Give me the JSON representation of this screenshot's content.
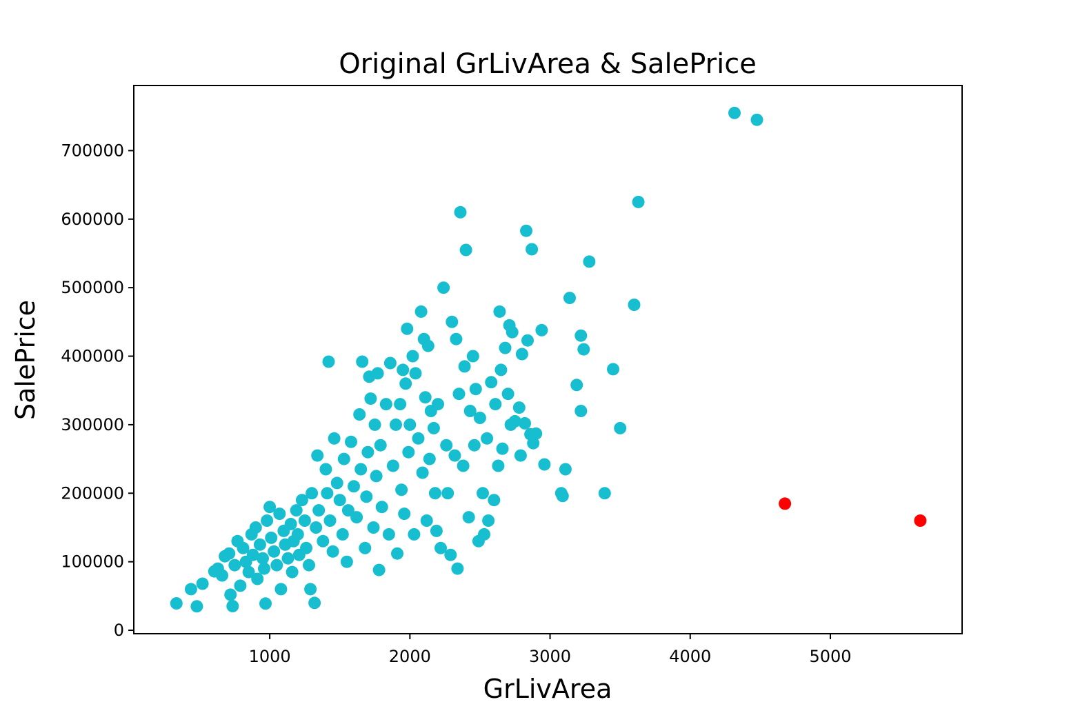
{
  "chart_data": {
    "type": "scatter",
    "title": "Original GrLivArea & SalePrice",
    "xlabel": "GrLivArea",
    "ylabel": "SalePrice",
    "xlim": [
      30,
      5940
    ],
    "ylim": [
      -5000,
      795000
    ],
    "xticks": [
      1000,
      2000,
      3000,
      4000,
      5000
    ],
    "yticks": [
      0,
      100000,
      200000,
      300000,
      400000,
      500000,
      600000,
      700000
    ],
    "grid": false,
    "legend": "none",
    "colors": {
      "points": "#17becf",
      "outliers": "#ff0000"
    },
    "series": [
      {
        "color": "#17becf",
        "points": [
          [
            334,
            39300
          ],
          [
            438,
            60000
          ],
          [
            480,
            35000
          ],
          [
            520,
            68000
          ],
          [
            605,
            86000
          ],
          [
            630,
            90000
          ],
          [
            660,
            80000
          ],
          [
            680,
            108000
          ],
          [
            710,
            112000
          ],
          [
            720,
            52000
          ],
          [
            735,
            35300
          ],
          [
            750,
            95000
          ],
          [
            770,
            130000
          ],
          [
            790,
            65000
          ],
          [
            810,
            120000
          ],
          [
            830,
            100000
          ],
          [
            850,
            85000
          ],
          [
            870,
            140000
          ],
          [
            880,
            110000
          ],
          [
            900,
            150000
          ],
          [
            912,
            75000
          ],
          [
            930,
            125000
          ],
          [
            950,
            105000
          ],
          [
            960,
            90000
          ],
          [
            970,
            39000
          ],
          [
            980,
            160000
          ],
          [
            1000,
            180000
          ],
          [
            1010,
            135000
          ],
          [
            1030,
            115000
          ],
          [
            1050,
            95000
          ],
          [
            1070,
            170000
          ],
          [
            1080,
            60000
          ],
          [
            1100,
            145000
          ],
          [
            1110,
            125000
          ],
          [
            1130,
            105000
          ],
          [
            1150,
            155000
          ],
          [
            1160,
            85000
          ],
          [
            1170,
            130000
          ],
          [
            1190,
            175000
          ],
          [
            1200,
            140000
          ],
          [
            1210,
            110000
          ],
          [
            1230,
            190000
          ],
          [
            1250,
            160000
          ],
          [
            1260,
            120000
          ],
          [
            1280,
            95000
          ],
          [
            1290,
            60000
          ],
          [
            1300,
            200000
          ],
          [
            1320,
            40000
          ],
          [
            1330,
            150000
          ],
          [
            1340,
            255000
          ],
          [
            1350,
            175000
          ],
          [
            1380,
            130000
          ],
          [
            1400,
            235000
          ],
          [
            1410,
            200000
          ],
          [
            1420,
            392000
          ],
          [
            1430,
            160000
          ],
          [
            1450,
            115000
          ],
          [
            1460,
            280000
          ],
          [
            1480,
            215000
          ],
          [
            1500,
            190000
          ],
          [
            1520,
            140000
          ],
          [
            1530,
            250000
          ],
          [
            1550,
            100000
          ],
          [
            1560,
            175000
          ],
          [
            1580,
            275000
          ],
          [
            1600,
            210000
          ],
          [
            1620,
            165000
          ],
          [
            1640,
            315000
          ],
          [
            1650,
            235000
          ],
          [
            1660,
            392000
          ],
          [
            1680,
            120000
          ],
          [
            1690,
            195000
          ],
          [
            1700,
            260000
          ],
          [
            1710,
            370000
          ],
          [
            1720,
            338000
          ],
          [
            1740,
            150000
          ],
          [
            1750,
            300000
          ],
          [
            1760,
            225000
          ],
          [
            1770,
            375000
          ],
          [
            1780,
            88000
          ],
          [
            1790,
            270000
          ],
          [
            1800,
            180000
          ],
          [
            1830,
            330000
          ],
          [
            1850,
            140000
          ],
          [
            1860,
            390000
          ],
          [
            1880,
            240000
          ],
          [
            1900,
            300000
          ],
          [
            1910,
            112000
          ],
          [
            1930,
            330000
          ],
          [
            1940,
            205000
          ],
          [
            1950,
            380000
          ],
          [
            1960,
            170000
          ],
          [
            1970,
            360000
          ],
          [
            1980,
            440000
          ],
          [
            1990,
            260000
          ],
          [
            2000,
            300000
          ],
          [
            2020,
            400000
          ],
          [
            2030,
            140000
          ],
          [
            2040,
            375000
          ],
          [
            2060,
            280000
          ],
          [
            2080,
            465000
          ],
          [
            2090,
            230000
          ],
          [
            2100,
            425000
          ],
          [
            2110,
            340000
          ],
          [
            2120,
            160000
          ],
          [
            2130,
            415000
          ],
          [
            2140,
            250000
          ],
          [
            2150,
            320000
          ],
          [
            2170,
            295000
          ],
          [
            2180,
            200000
          ],
          [
            2190,
            145000
          ],
          [
            2200,
            330000
          ],
          [
            2220,
            120000
          ],
          [
            2240,
            500000
          ],
          [
            2260,
            270000
          ],
          [
            2270,
            200000
          ],
          [
            2290,
            110000
          ],
          [
            2300,
            450000
          ],
          [
            2320,
            255000
          ],
          [
            2330,
            425000
          ],
          [
            2340,
            90000
          ],
          [
            2350,
            345000
          ],
          [
            2360,
            610000
          ],
          [
            2380,
            240000
          ],
          [
            2390,
            385000
          ],
          [
            2400,
            555000
          ],
          [
            2420,
            165000
          ],
          [
            2430,
            320000
          ],
          [
            2450,
            400000
          ],
          [
            2460,
            270000
          ],
          [
            2470,
            352000
          ],
          [
            2490,
            130000
          ],
          [
            2500,
            310000
          ],
          [
            2520,
            200000
          ],
          [
            2530,
            140000
          ],
          [
            2550,
            280000
          ],
          [
            2560,
            160000
          ],
          [
            2580,
            362000
          ],
          [
            2600,
            190000
          ],
          [
            2610,
            330000
          ],
          [
            2630,
            240000
          ],
          [
            2640,
            465000
          ],
          [
            2650,
            380000
          ],
          [
            2660,
            265000
          ],
          [
            2680,
            412000
          ],
          [
            2700,
            345000
          ],
          [
            2710,
            445000
          ],
          [
            2720,
            300000
          ],
          [
            2730,
            435000
          ],
          [
            2750,
            305000
          ],
          [
            2780,
            325000
          ],
          [
            2790,
            255000
          ],
          [
            2800,
            403000
          ],
          [
            2820,
            302000
          ],
          [
            2830,
            583000
          ],
          [
            2840,
            423000
          ],
          [
            2860,
            286000
          ],
          [
            2870,
            556000
          ],
          [
            2880,
            273000
          ],
          [
            2900,
            287000
          ],
          [
            2940,
            438000
          ],
          [
            2960,
            242000
          ],
          [
            3080,
            200000
          ],
          [
            3090,
            196000
          ],
          [
            3110,
            235000
          ],
          [
            3140,
            485000
          ],
          [
            3190,
            358000
          ],
          [
            3220,
            320000
          ],
          [
            3220,
            430000
          ],
          [
            3240,
            410000
          ],
          [
            3280,
            538000
          ],
          [
            3390,
            200000
          ],
          [
            3450,
            381000
          ],
          [
            3500,
            295000
          ],
          [
            3600,
            475000
          ],
          [
            3630,
            625000
          ],
          [
            4316,
            755000
          ],
          [
            4476,
            745000
          ]
        ]
      },
      {
        "color": "#ff0000",
        "points": [
          [
            4676,
            184750
          ],
          [
            5642,
            160000
          ]
        ]
      }
    ]
  }
}
